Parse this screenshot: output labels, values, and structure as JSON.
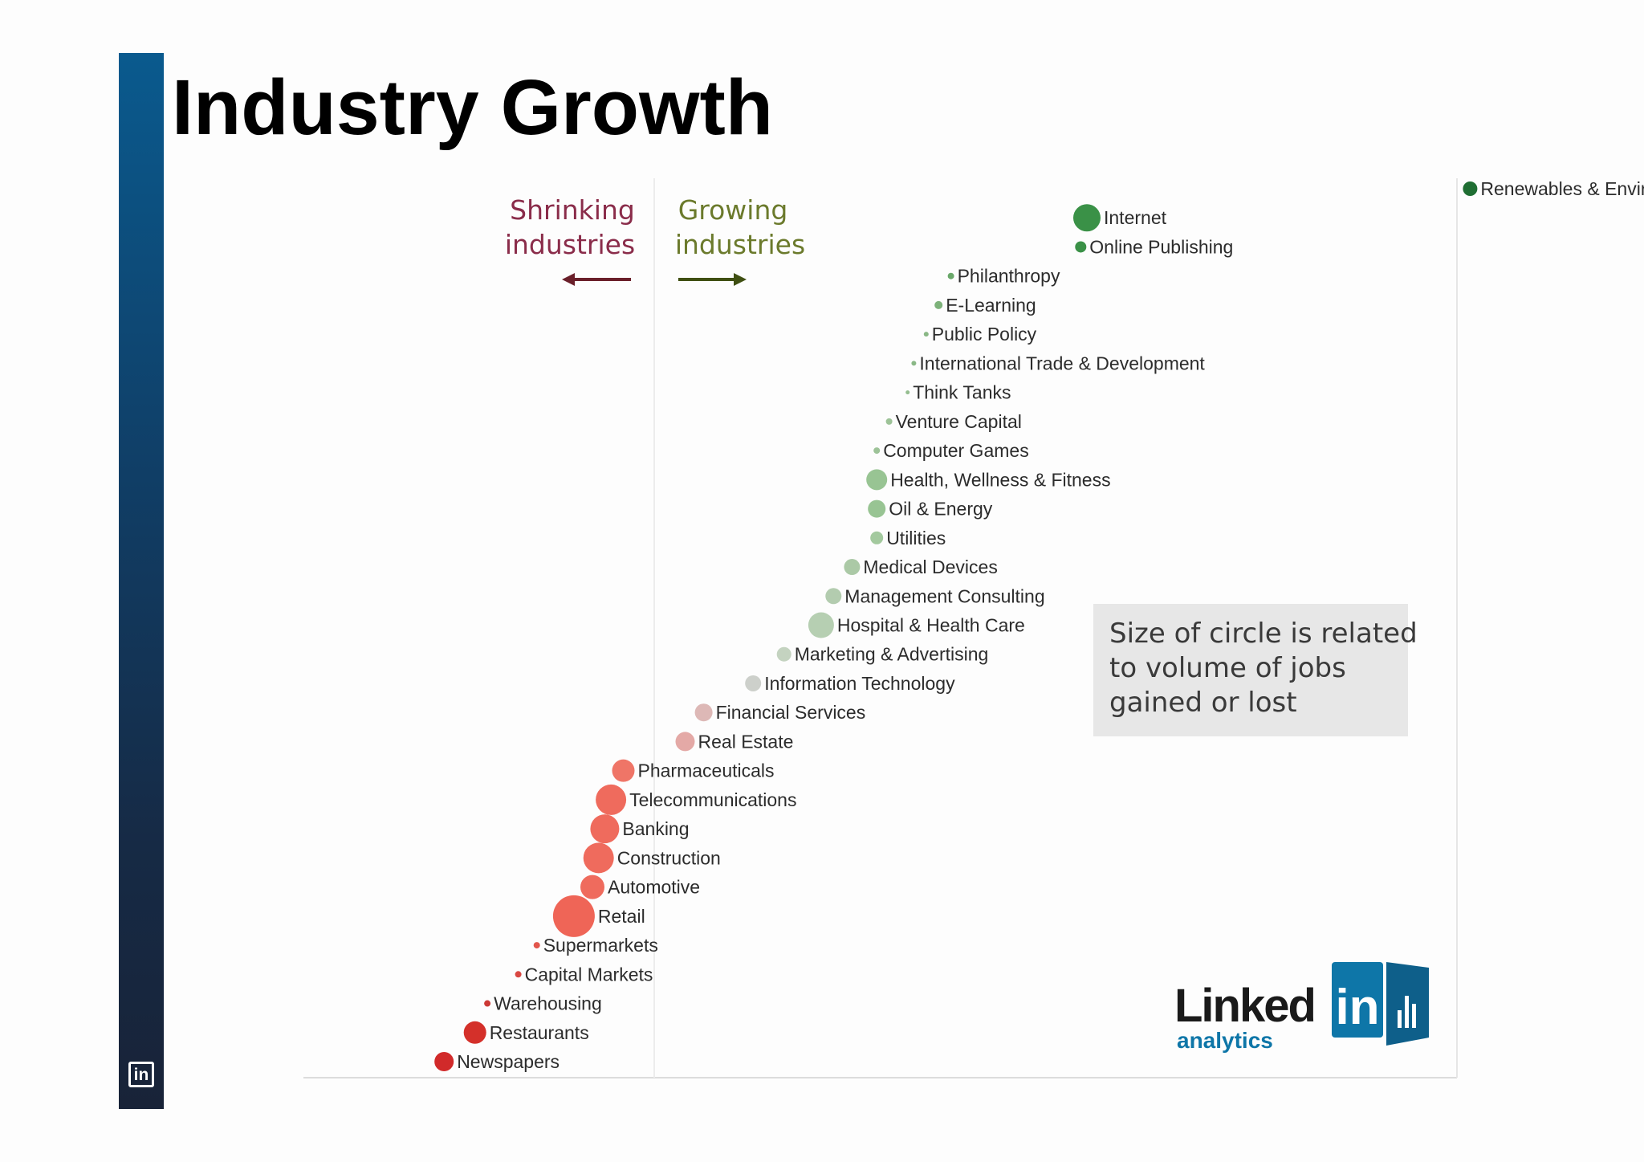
{
  "slide": {
    "title": "Industry Growth",
    "side_logo_text": "in"
  },
  "colors": {
    "side_bar_top": "#0a5a8e",
    "side_bar_bottom": "#182338",
    "strong_growth": "#2e8b3e",
    "moderate_growth": "#8fbf8a",
    "neutral": "#c9cfc7",
    "moderate_shrink": "#e8a3a0",
    "strong_shrink": "#ef6659",
    "severe_shrink": "#d32a2a",
    "shrinking_text": "#8a2c4a",
    "growing_text": "#6b7a2c",
    "linkedin_blue": "#0e76a8"
  },
  "annotations": {
    "shrinking": [
      "Shrinking",
      "industries"
    ],
    "growing": [
      "Growing",
      "industries"
    ],
    "note": [
      "Size of circle is related",
      "to volume of jobs",
      "gained or lost"
    ]
  },
  "branding": {
    "word": "Linked",
    "box_text": "in",
    "sub": "analytics"
  },
  "chart_data": {
    "type": "scatter",
    "title": "",
    "xlabel": "",
    "ylabel": "",
    "encoding": "rank order of industries by net job growth; circle size related to volume of jobs gained or lost",
    "points": [
      {
        "label": "Renewables & Environment",
        "x": 13.2,
        "rank": 1,
        "size": 9,
        "color": "#1f6e33"
      },
      {
        "label": "Internet",
        "x": 7.0,
        "rank": 2,
        "size": 17,
        "color": "#3a9147"
      },
      {
        "label": "Online Publishing",
        "x": 6.9,
        "rank": 3,
        "size": 7,
        "color": "#3a9147"
      },
      {
        "label": "Philanthropy",
        "x": 4.8,
        "rank": 4,
        "size": 4,
        "color": "#6aa86a"
      },
      {
        "label": "E-Learning",
        "x": 4.6,
        "rank": 5,
        "size": 5,
        "color": "#7db27a"
      },
      {
        "label": "Public Policy",
        "x": 4.4,
        "rank": 6,
        "size": 3,
        "color": "#8ab886"
      },
      {
        "label": "International Trade & Development",
        "x": 4.2,
        "rank": 7,
        "size": 3,
        "color": "#8ab886"
      },
      {
        "label": "Think Tanks",
        "x": 4.1,
        "rank": 8,
        "size": 2.5,
        "color": "#95be90"
      },
      {
        "label": "Venture Capital",
        "x": 3.8,
        "rank": 9,
        "size": 4,
        "color": "#9dc398"
      },
      {
        "label": "Computer Games",
        "x": 3.6,
        "rank": 10,
        "size": 4,
        "color": "#9dc398"
      },
      {
        "label": "Health, Wellness & Fitness",
        "x": 3.6,
        "rank": 11,
        "size": 13,
        "color": "#98c493"
      },
      {
        "label": "Oil & Energy",
        "x": 3.6,
        "rank": 12,
        "size": 11,
        "color": "#98c493"
      },
      {
        "label": "Utilities",
        "x": 3.6,
        "rank": 13,
        "size": 8,
        "color": "#a3c99e"
      },
      {
        "label": "Medical Devices",
        "x": 3.2,
        "rank": 14,
        "size": 10,
        "color": "#abc9a6"
      },
      {
        "label": "Management Consulting",
        "x": 2.9,
        "rank": 15,
        "size": 10,
        "color": "#b3ccaf"
      },
      {
        "label": "Hospital & Health Care",
        "x": 2.7,
        "rank": 16,
        "size": 16,
        "color": "#b6cfb2"
      },
      {
        "label": "Marketing & Advertising",
        "x": 2.1,
        "rank": 17,
        "size": 9,
        "color": "#c4d3c0"
      },
      {
        "label": "Information Technology",
        "x": 1.6,
        "rank": 18,
        "size": 10,
        "color": "#cdd0cb"
      },
      {
        "label": "Financial Services",
        "x": 0.8,
        "rank": 19,
        "size": 11,
        "color": "#ddb8b6"
      },
      {
        "label": "Real Estate",
        "x": 0.5,
        "rank": 20,
        "size": 12,
        "color": "#e4a9a6"
      },
      {
        "label": "Pharmaceuticals",
        "x": -0.5,
        "rank": 21,
        "size": 14,
        "color": "#ef7567"
      },
      {
        "label": "Telecommunications",
        "x": -0.7,
        "rank": 22,
        "size": 19,
        "color": "#ef6b5d"
      },
      {
        "label": "Banking",
        "x": -0.8,
        "rank": 23,
        "size": 18,
        "color": "#ef6b5d"
      },
      {
        "label": "Construction",
        "x": -0.9,
        "rank": 24,
        "size": 19,
        "color": "#ef6b5d"
      },
      {
        "label": "Automotive",
        "x": -1.0,
        "rank": 25,
        "size": 15,
        "color": "#ef6b5d"
      },
      {
        "label": "Retail",
        "x": -1.3,
        "rank": 26,
        "size": 26,
        "color": "#ef6557"
      },
      {
        "label": "Supermarkets",
        "x": -1.9,
        "rank": 27,
        "size": 4,
        "color": "#e2564c"
      },
      {
        "label": "Capital Markets",
        "x": -2.2,
        "rank": 28,
        "size": 4,
        "color": "#d94842"
      },
      {
        "label": "Warehousing",
        "x": -2.7,
        "rank": 29,
        "size": 4,
        "color": "#cc3a36"
      },
      {
        "label": "Restaurants",
        "x": -2.9,
        "rank": 30,
        "size": 14,
        "color": "#d4302a"
      },
      {
        "label": "Newspapers",
        "x": -3.4,
        "rank": 31,
        "size": 12,
        "color": "#d12a2a"
      }
    ],
    "zero_line_x": 0,
    "grid": false,
    "legend": "none"
  }
}
